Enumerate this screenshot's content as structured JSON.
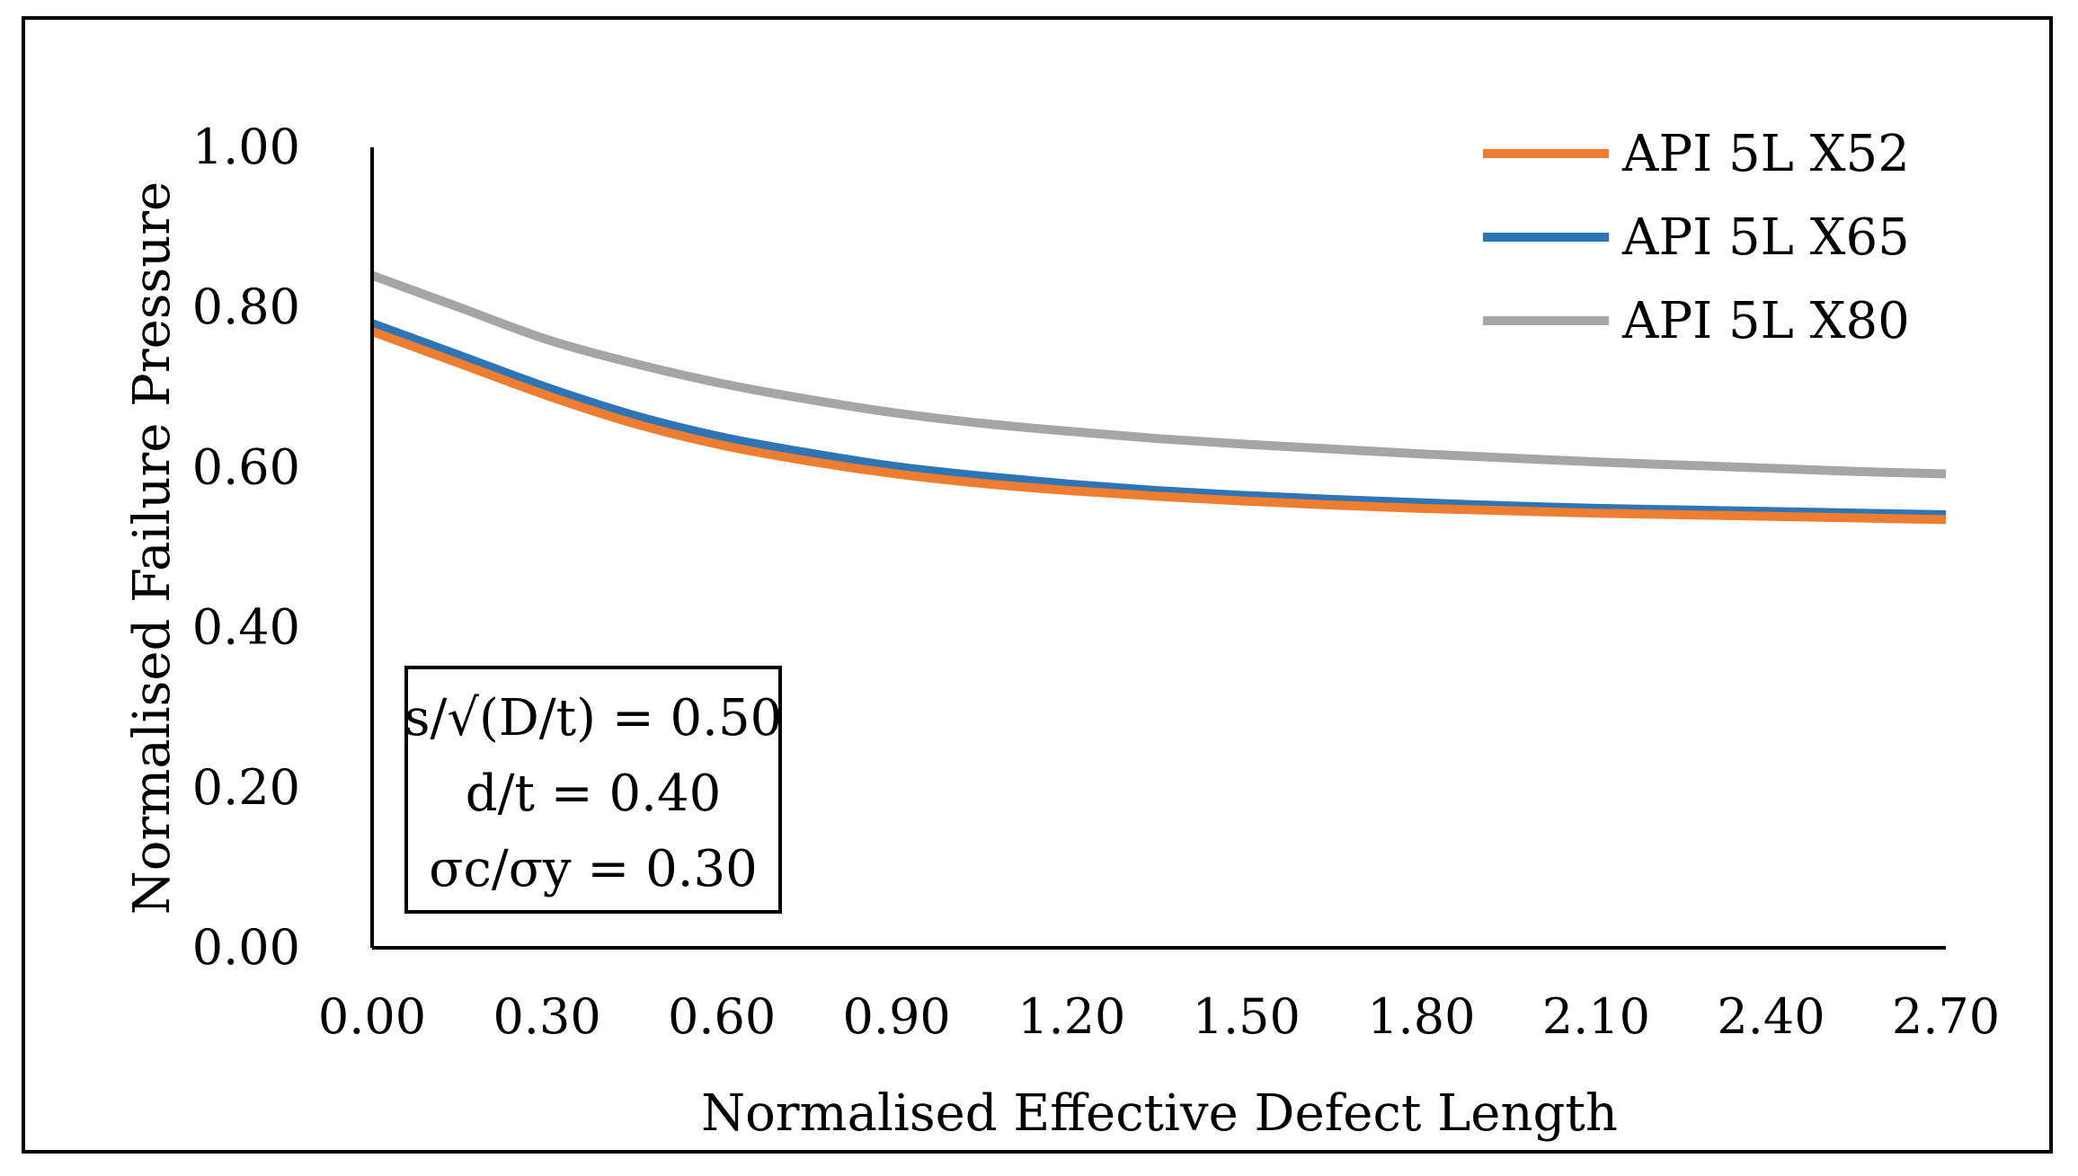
{
  "chart_data": {
    "type": "line",
    "title": "",
    "xlabel": "Normalised Effective Defect Length",
    "ylabel": "Normalised Failure Pressure",
    "xlim": [
      0,
      2.7
    ],
    "ylim": [
      0,
      1.0
    ],
    "x_ticks": [
      "0.00",
      "0.30",
      "0.60",
      "0.90",
      "1.20",
      "1.50",
      "1.80",
      "2.10",
      "2.40",
      "2.70"
    ],
    "y_ticks": [
      "0.00",
      "0.20",
      "0.40",
      "0.60",
      "0.80",
      "1.00"
    ],
    "x_tick_values": [
      0,
      0.3,
      0.6,
      0.9,
      1.2,
      1.5,
      1.8,
      2.1,
      2.4,
      2.7
    ],
    "y_tick_values": [
      0,
      0.2,
      0.4,
      0.6,
      0.8,
      1.0
    ],
    "grid": false,
    "legend_position": "top-right",
    "x": [
      0.0,
      0.15,
      0.3,
      0.45,
      0.6,
      0.75,
      0.9,
      1.05,
      1.2,
      1.35,
      1.5,
      1.65,
      1.8,
      1.95,
      2.1,
      2.25,
      2.4,
      2.55,
      2.7
    ],
    "series": [
      {
        "name": "API 5L X52",
        "color": "#ED7D31",
        "values": [
          0.77,
          0.73,
          0.69,
          0.655,
          0.628,
          0.608,
          0.592,
          0.58,
          0.571,
          0.564,
          0.558,
          0.553,
          0.549,
          0.546,
          0.543,
          0.541,
          0.539,
          0.537,
          0.535
        ]
      },
      {
        "name": "API 5L X65",
        "color": "#2E75B6",
        "values": [
          0.78,
          0.74,
          0.7,
          0.665,
          0.638,
          0.618,
          0.601,
          0.589,
          0.579,
          0.571,
          0.565,
          0.56,
          0.556,
          0.552,
          0.549,
          0.547,
          0.545,
          0.543,
          0.541
        ]
      },
      {
        "name": "API 5L X80",
        "color": "#A5A5A5",
        "values": [
          0.84,
          0.8,
          0.76,
          0.73,
          0.705,
          0.685,
          0.668,
          0.655,
          0.645,
          0.636,
          0.629,
          0.623,
          0.617,
          0.612,
          0.607,
          0.603,
          0.599,
          0.595,
          0.592
        ]
      }
    ],
    "annotation": {
      "lines": [
        "s/√(D/t) = 0.50",
        "d/t = 0.40",
        "σc/σy = 0.30"
      ]
    }
  }
}
